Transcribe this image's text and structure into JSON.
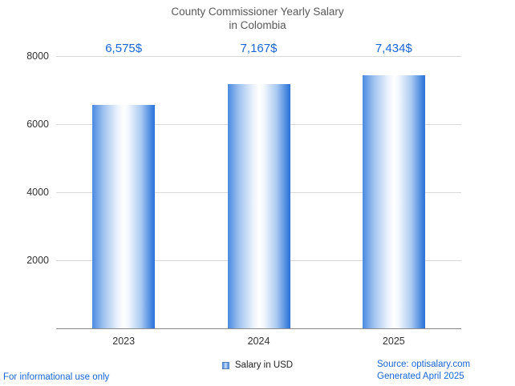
{
  "chart_data": {
    "type": "bar",
    "title": "County Commissioner Yearly Salary in Colombia",
    "title_lines": [
      "County Commissioner Yearly Salary",
      "in Colombia"
    ],
    "categories": [
      "2023",
      "2024",
      "2025"
    ],
    "values": [
      6575,
      7167,
      7434
    ],
    "value_labels": [
      "6,575$",
      "7,167$",
      "7,434$"
    ],
    "series_name": "Salary in USD",
    "ylim": [
      0,
      8000
    ],
    "yticks": [
      2000,
      4000,
      6000,
      8000
    ],
    "grid": true,
    "legend_position": "bottom",
    "bar_edge_color": "#3b7fdd",
    "bar_center_color": "#ffffff"
  },
  "legend": {
    "label": "Salary in USD"
  },
  "footer": {
    "disclaimer": "For informational use only",
    "source": "Source: optisalary.com",
    "generated": "Generated April 2025"
  },
  "colors": {
    "accent_blue": "#1766d4",
    "title_gray": "#595959"
  }
}
